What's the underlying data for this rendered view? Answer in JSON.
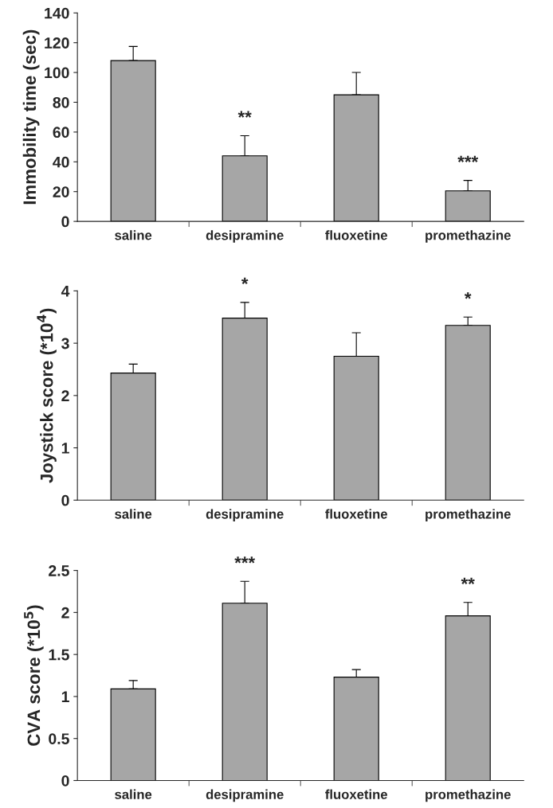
{
  "chart_data": [
    {
      "type": "bar",
      "ylabel": "Immobility time (sec)",
      "categories": [
        "saline",
        "desipramine",
        "fluoxetine",
        "promethazine"
      ],
      "values": [
        108,
        44,
        85,
        20.5
      ],
      "errors": [
        [
          108,
          117.5
        ],
        [
          44,
          57.5
        ],
        [
          85,
          100
        ],
        [
          20.5,
          27.5
        ]
      ],
      "color": "#a6a6a6",
      "ylim": [
        0,
        140
      ],
      "yticks": [
        0,
        20,
        40,
        60,
        80,
        100,
        120,
        140
      ],
      "grid": false,
      "legend": false,
      "annotations": [
        {
          "text": "**",
          "x": "desipramine",
          "y": 57.5
        },
        {
          "text": "***",
          "x": "promethazine",
          "y": 27.5
        }
      ]
    },
    {
      "type": "bar",
      "ylabel": "Joystick score (*10$^{4}$)",
      "categories": [
        "saline",
        "desipramine",
        "fluoxetine",
        "promethazine"
      ],
      "values": [
        2.43,
        3.48,
        2.75,
        3.34
      ],
      "errors": [
        [
          2.43,
          2.6
        ],
        [
          3.48,
          3.78
        ],
        [
          2.75,
          3.2
        ],
        [
          3.34,
          3.5
        ]
      ],
      "color": "#a6a6a6",
      "ylim": [
        0,
        4
      ],
      "yticks": [
        0,
        1,
        2,
        3,
        4
      ],
      "grid": false,
      "legend": false,
      "annotations": [
        {
          "text": "*",
          "x": "desipramine",
          "y": 3.78
        },
        {
          "text": "*",
          "x": "promethazine",
          "y": 3.5
        }
      ]
    },
    {
      "type": "bar",
      "ylabel": "CVA score (*10$^{5}$)",
      "categories": [
        "saline",
        "desipramine",
        "fluoxetine",
        "promethazine"
      ],
      "values": [
        1.09,
        2.11,
        1.23,
        1.96
      ],
      "errors": [
        [
          1.09,
          1.19
        ],
        [
          2.11,
          2.37
        ],
        [
          1.23,
          1.32
        ],
        [
          1.96,
          2.12
        ]
      ],
      "color": "#a6a6a6",
      "ylim": [
        0,
        2.5
      ],
      "yticks": [
        0,
        0.5,
        1,
        1.5,
        2,
        2.5
      ],
      "grid": false,
      "legend": false,
      "annotations": [
        {
          "text": "***",
          "x": "desipramine",
          "y": 2.37
        },
        {
          "text": "**",
          "x": "promethazine",
          "y": 2.12
        }
      ]
    }
  ]
}
